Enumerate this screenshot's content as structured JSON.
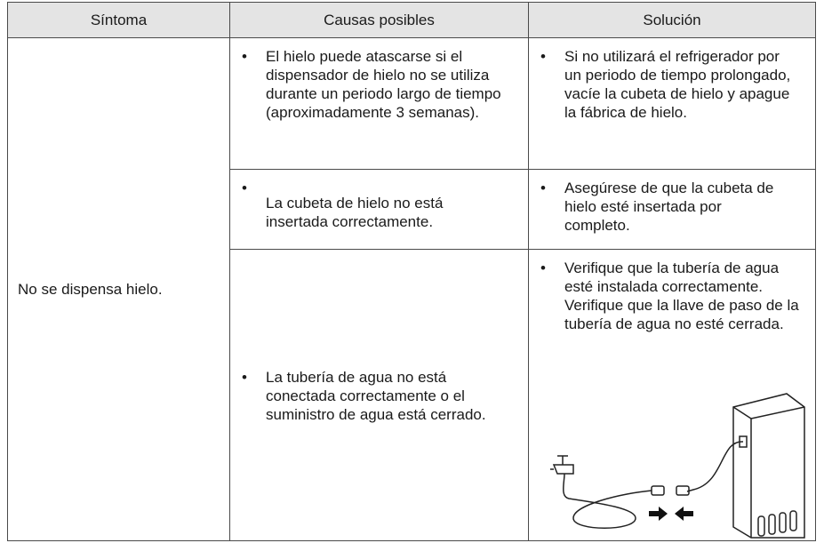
{
  "table": {
    "header": [
      "Síntoma",
      "Causas posibles",
      "Solución"
    ],
    "symptom": "No se dispensa hielo.",
    "rows": [
      {
        "cause": "El hielo puede atascarse si el dispensador de hielo no se utiliza durante un periodo largo de tiempo (aproximadamente 3 semanas).",
        "solution": "Si no utilizará el refrigerador por un periodo de tiempo prolongado, vacíe la cubeta de hielo y apague la fábrica de hielo."
      },
      {
        "cause": "La cubeta de hielo no está insertada correctamente.",
        "solution": "Asegúrese de que la cubeta de hielo esté insertada por completo."
      },
      {
        "cause": "La tubería de agua no está conectada correctamente o el suministro de agua está cerrado.",
        "solution": "Verifique que la tubería de agua esté instalada correctamente. Verifique que la llave de paso de la tubería de agua no esté cerrada."
      }
    ]
  }
}
